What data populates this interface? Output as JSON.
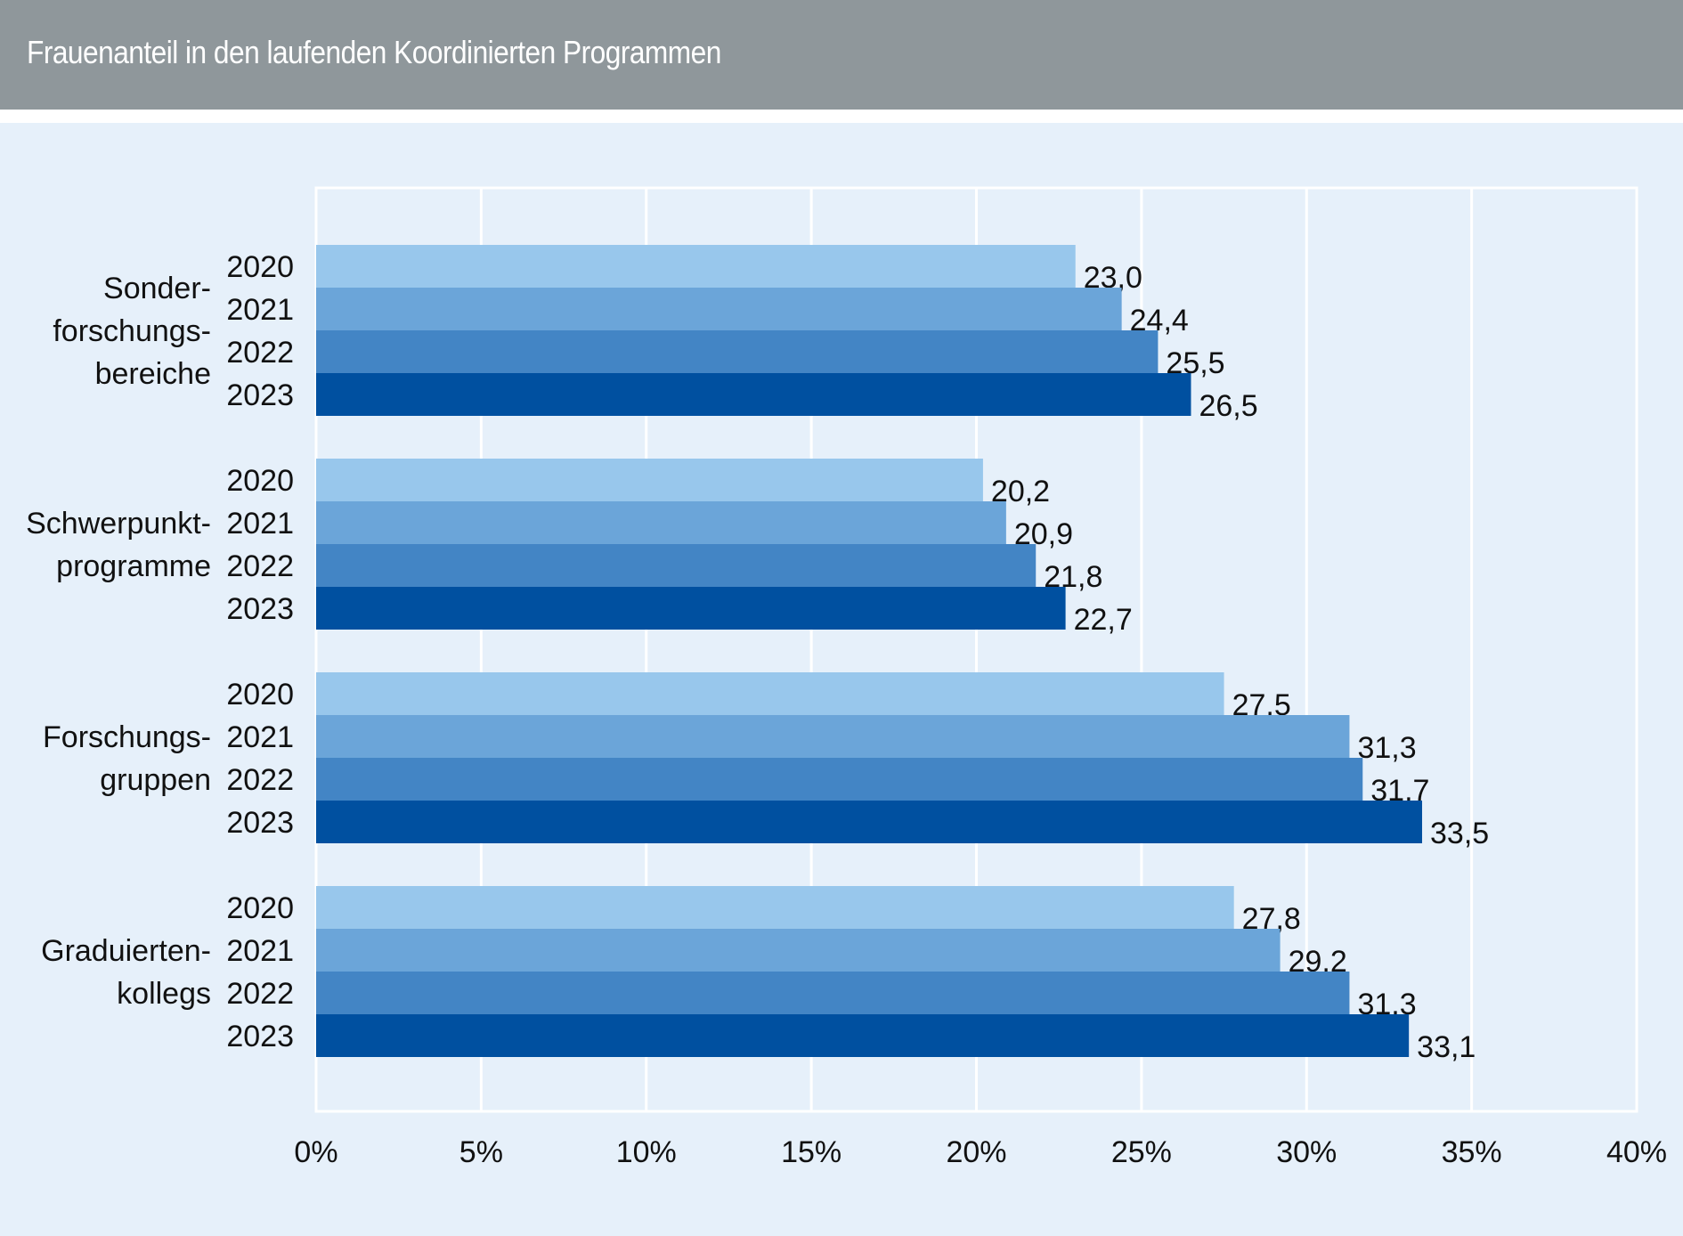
{
  "header": {
    "title": "Frauenanteil in den laufenden Koordinierten Programmen"
  },
  "colors": {
    "2020": "#98c7ec",
    "2021": "#6ba5d9",
    "2022": "#4385c5",
    "2023": "#0050a0",
    "header_bg": "#8f979b",
    "plot_bg": "#e6f0fa",
    "grid": "#ffffff"
  },
  "chart_data": {
    "type": "bar",
    "orientation": "horizontal",
    "title": "Frauenanteil in den laufenden Koordinierten Programmen",
    "xlabel": "",
    "ylabel": "",
    "xlim": [
      0,
      40
    ],
    "x_ticks": [
      0,
      5,
      10,
      15,
      20,
      25,
      30,
      35,
      40
    ],
    "x_tick_labels": [
      "0%",
      "5%",
      "10%",
      "15%",
      "20%",
      "25%",
      "30%",
      "35%",
      "40%"
    ],
    "grid": true,
    "legend": "none (years labeled per bar)",
    "categories": [
      {
        "lines": [
          "Sonder-",
          "forschungs-",
          "bereiche"
        ]
      },
      {
        "lines": [
          "Schwerpunkt-",
          "programme"
        ]
      },
      {
        "lines": [
          "Forschungs-",
          "gruppen"
        ]
      },
      {
        "lines": [
          "Graduierten-",
          "kollegs"
        ]
      }
    ],
    "category_names": [
      "Sonderforschungsbereiche",
      "Schwerpunktprogramme",
      "Forschungsgruppen",
      "Graduiertenkollegs"
    ],
    "series": [
      {
        "name": "2020",
        "values": [
          23.0,
          20.2,
          27.5,
          27.8
        ],
        "labels": [
          "23,0",
          "20,2",
          "27,5",
          "27,8"
        ]
      },
      {
        "name": "2021",
        "values": [
          24.4,
          20.9,
          31.3,
          29.2
        ],
        "labels": [
          "24,4",
          "20,9",
          "31,3",
          "29,2"
        ]
      },
      {
        "name": "2022",
        "values": [
          25.5,
          21.8,
          31.7,
          31.3
        ],
        "labels": [
          "25,5",
          "21,8",
          "31,7",
          "31,3"
        ]
      },
      {
        "name": "2023",
        "values": [
          26.5,
          22.7,
          33.5,
          33.1
        ],
        "labels": [
          "26,5",
          "22,7",
          "33,5",
          "33,1"
        ]
      }
    ]
  }
}
